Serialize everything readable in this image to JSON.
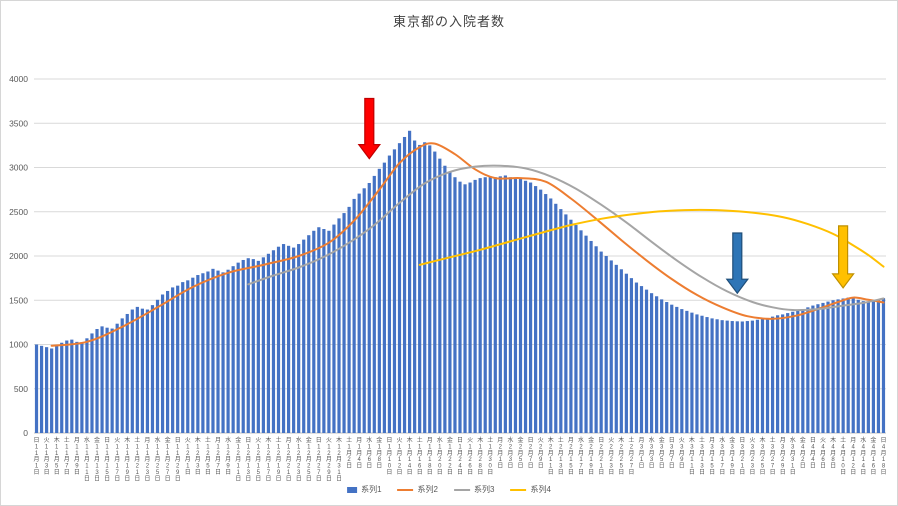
{
  "chart_data": {
    "type": "bar",
    "title": "東京都の入院者数",
    "xlabel": "",
    "ylabel": "",
    "ylim": [
      0,
      4000
    ],
    "y_ticks": [
      0,
      500,
      1000,
      1500,
      2000,
      2500,
      3000,
      3500,
      4000
    ],
    "grid": "horizontal",
    "legend_position": "bottom",
    "x_tick_interval_days": 2,
    "x_tick_labels": [
      "日11月1日",
      "火11月3日",
      "木11月5日",
      "土11月7日",
      "月11月9日",
      "水11月11日",
      "金11月13日",
      "日11月15日",
      "火11月17日",
      "木11月19日",
      "土11月21日",
      "月11月23日",
      "水11月25日",
      "金11月27日",
      "日11月29日",
      "火12月1日",
      "木12月3日",
      "土12月5日",
      "月12月7日",
      "水12月9日",
      "金12月11日",
      "日12月13日",
      "火12月15日",
      "木12月17日",
      "土12月19日",
      "月12月21日",
      "水12月23日",
      "金12月25日",
      "日12月27日",
      "火12月29日",
      "木12月31日",
      "土1月2日",
      "月1月4日",
      "水1月6日",
      "金1月8日",
      "日1月10日",
      "火1月12日",
      "木1月14日",
      "土1月16日",
      "月1月18日",
      "水1月20日",
      "金1月22日",
      "日1月24日",
      "火1月26日",
      "木1月28日",
      "土1月30日",
      "月2月1日",
      "水2月3日",
      "金2月5日",
      "日2月7日",
      "火2月9日",
      "木2月11日",
      "土2月13日",
      "月2月15日",
      "水2月17日",
      "金2月19日",
      "日2月21日",
      "火2月23日",
      "木2月25日",
      "土2月27日",
      "月3月1日",
      "水3月3日",
      "金3月5日",
      "日3月7日",
      "火3月9日",
      "木3月11日",
      "土3月13日",
      "月3月15日",
      "水3月17日",
      "金3月19日",
      "日3月21日",
      "火3月23日",
      "木3月25日",
      "土3月27日",
      "月3月29日",
      "水3月31日",
      "金4月2日",
      "日4月4日",
      "火4月6日",
      "木4月8日",
      "土4月10日",
      "月4月12日",
      "水4月14日",
      "金4月16日",
      "日4月18日"
    ],
    "bar_series": {
      "name": "系列1",
      "color": "#4472C4",
      "values": [
        1000,
        985,
        970,
        955,
        990,
        1020,
        1045,
        1055,
        1030,
        1025,
        1070,
        1125,
        1175,
        1205,
        1190,
        1180,
        1235,
        1295,
        1345,
        1395,
        1425,
        1405,
        1395,
        1445,
        1505,
        1565,
        1605,
        1645,
        1665,
        1705,
        1725,
        1755,
        1785,
        1805,
        1825,
        1855,
        1835,
        1815,
        1845,
        1885,
        1925,
        1955,
        1975,
        1965,
        1945,
        1985,
        2025,
        2065,
        2105,
        2135,
        2115,
        2095,
        2135,
        2185,
        2235,
        2285,
        2325,
        2305,
        2285,
        2355,
        2425,
        2485,
        2555,
        2645,
        2705,
        2765,
        2825,
        2905,
        2985,
        3055,
        3135,
        3205,
        3275,
        3345,
        3415,
        3305,
        3255,
        3285,
        3250,
        3180,
        3100,
        3020,
        2950,
        2890,
        2840,
        2810,
        2830,
        2860,
        2880,
        2890,
        2900,
        2890,
        2900,
        2910,
        2890,
        2880,
        2870,
        2850,
        2830,
        2790,
        2750,
        2700,
        2650,
        2590,
        2530,
        2470,
        2410,
        2350,
        2290,
        2230,
        2170,
        2110,
        2050,
        2000,
        1950,
        1900,
        1850,
        1800,
        1750,
        1700,
        1660,
        1620,
        1580,
        1545,
        1510,
        1480,
        1450,
        1425,
        1400,
        1380,
        1360,
        1340,
        1325,
        1310,
        1295,
        1285,
        1275,
        1270,
        1265,
        1262,
        1260,
        1265,
        1270,
        1280,
        1290,
        1300,
        1315,
        1330,
        1340,
        1355,
        1370,
        1385,
        1400,
        1420,
        1440,
        1455,
        1470,
        1485,
        1500,
        1510,
        1520,
        1530,
        1520,
        1505,
        1490,
        1480,
        1490,
        1505,
        1525
      ]
    },
    "line_series": [
      {
        "name": "系列2",
        "color": "#ED7D31",
        "points": [
          [
            3,
            985
          ],
          [
            10,
            1030
          ],
          [
            17,
            1200
          ],
          [
            24,
            1420
          ],
          [
            31,
            1650
          ],
          [
            38,
            1810
          ],
          [
            45,
            1900
          ],
          [
            52,
            2000
          ],
          [
            58,
            2150
          ],
          [
            63,
            2400
          ],
          [
            68,
            2750
          ],
          [
            72,
            3050
          ],
          [
            76,
            3230
          ],
          [
            79,
            3270
          ],
          [
            83,
            3150
          ],
          [
            87,
            2980
          ],
          [
            91,
            2880
          ],
          [
            96,
            2880
          ],
          [
            101,
            2840
          ],
          [
            106,
            2650
          ],
          [
            111,
            2420
          ],
          [
            116,
            2180
          ],
          [
            121,
            1950
          ],
          [
            126,
            1740
          ],
          [
            131,
            1560
          ],
          [
            136,
            1420
          ],
          [
            141,
            1320
          ],
          [
            146,
            1290
          ],
          [
            151,
            1330
          ],
          [
            156,
            1420
          ],
          [
            159,
            1480
          ],
          [
            162,
            1530
          ],
          [
            165,
            1505
          ],
          [
            168,
            1475
          ]
        ]
      },
      {
        "name": "系列3",
        "color": "#A5A5A5",
        "points": [
          [
            42,
            1680
          ],
          [
            47,
            1780
          ],
          [
            52,
            1870
          ],
          [
            57,
            1990
          ],
          [
            62,
            2150
          ],
          [
            67,
            2350
          ],
          [
            72,
            2600
          ],
          [
            77,
            2820
          ],
          [
            82,
            2950
          ],
          [
            87,
            3010
          ],
          [
            92,
            3020
          ],
          [
            97,
            2990
          ],
          [
            102,
            2900
          ],
          [
            107,
            2760
          ],
          [
            112,
            2580
          ],
          [
            117,
            2380
          ],
          [
            122,
            2160
          ],
          [
            127,
            1950
          ],
          [
            132,
            1760
          ],
          [
            137,
            1600
          ],
          [
            142,
            1480
          ],
          [
            146,
            1420
          ],
          [
            150,
            1390
          ],
          [
            155,
            1400
          ],
          [
            160,
            1440
          ],
          [
            164,
            1470
          ],
          [
            168,
            1520
          ]
        ]
      },
      {
        "name": "系列4",
        "color": "#FFC000",
        "points": [
          [
            76,
            1900
          ],
          [
            82,
            1985
          ],
          [
            88,
            2070
          ],
          [
            94,
            2165
          ],
          [
            100,
            2260
          ],
          [
            106,
            2350
          ],
          [
            112,
            2420
          ],
          [
            118,
            2470
          ],
          [
            124,
            2505
          ],
          [
            130,
            2520
          ],
          [
            136,
            2515
          ],
          [
            142,
            2490
          ],
          [
            148,
            2440
          ],
          [
            153,
            2360
          ],
          [
            158,
            2250
          ],
          [
            162,
            2120
          ],
          [
            165,
            2010
          ],
          [
            168,
            1880
          ]
        ]
      }
    ],
    "annotations": [
      {
        "name": "red-down-arrow",
        "index": 66,
        "value_top": 3780,
        "value_tip": 3100,
        "fill": "#FF0000",
        "stroke": "#C00000"
      },
      {
        "name": "blue-down-arrow",
        "index": 139,
        "value_top": 2260,
        "value_tip": 1580,
        "fill": "#2E75B6",
        "stroke": "#1F4E79"
      },
      {
        "name": "yellow-down-arrow",
        "index": 160,
        "value_top": 2340,
        "value_tip": 1640,
        "fill": "#FFC000",
        "stroke": "#BF9000"
      }
    ]
  }
}
